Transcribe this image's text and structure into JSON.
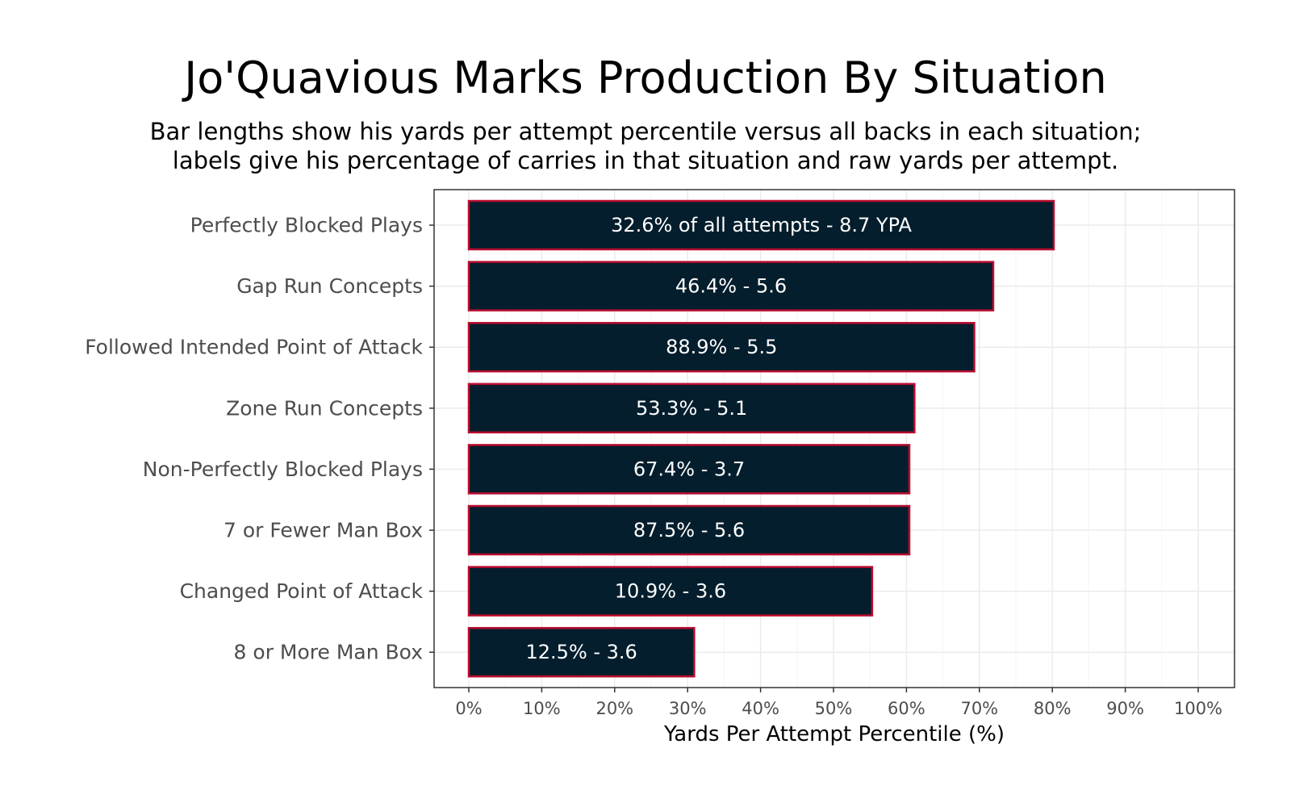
{
  "chart_data": {
    "type": "bar",
    "orientation": "horizontal",
    "title": "Jo'Quavious Marks Production By Situation",
    "subtitle": [
      "Bar lengths show his yards per attempt percentile versus all backs in each situation;",
      "labels give his percentage of carries in that situation and raw yards per attempt."
    ],
    "xlabel": "Yards Per Attempt Percentile (%)",
    "ylabel": "",
    "xlim": [
      0,
      100
    ],
    "x_ticks": [
      0,
      10,
      20,
      30,
      40,
      50,
      60,
      70,
      80,
      90,
      100
    ],
    "x_tick_labels": [
      "0%",
      "10%",
      "20%",
      "30%",
      "40%",
      "50%",
      "60%",
      "70%",
      "80%",
      "90%",
      "100%"
    ],
    "grid": true,
    "legend": "none",
    "categories": [
      "Perfectly Blocked Plays",
      "Gap Run Concepts",
      "Followed Intended Point of Attack",
      "Zone Run Concepts",
      "Non-Perfectly Blocked Plays",
      "7 or Fewer Man Box",
      "Changed Point of Attack",
      "8 or More Man Box"
    ],
    "values": [
      80.2,
      71.9,
      69.3,
      61.1,
      60.4,
      60.4,
      55.3,
      30.9
    ],
    "bar_labels": [
      "32.6% of all attempts - 8.7 YPA",
      "46.4% - 5.6",
      "88.9% - 5.5",
      "53.3% - 5.1",
      "67.4% - 3.7",
      "87.5% - 5.6",
      "10.9% - 3.6",
      "12.5% - 3.6"
    ],
    "colors": {
      "bar_fill": "#041E2D",
      "bar_outline": "#BA0C2F",
      "label_inside": "#FFFFFF",
      "label_outside": "#000000",
      "grid_major": "#EBEBEB",
      "grid_minor": "#F5F5F5",
      "panel_border": "#333333"
    }
  }
}
